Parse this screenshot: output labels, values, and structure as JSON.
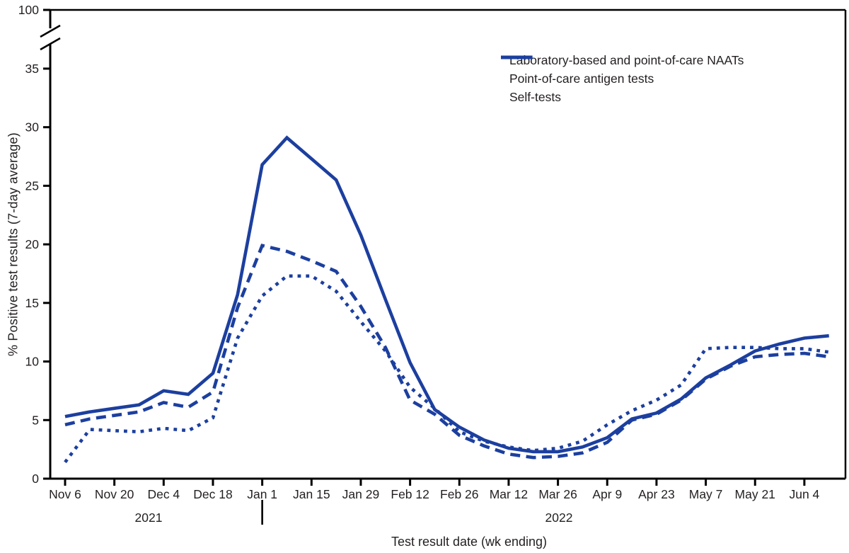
{
  "figure": {
    "ylabel": "% Positive test results (7-day average)",
    "xlabel": "Test result date (wk ending)",
    "year_left": "2021",
    "year_right": "2022"
  },
  "legend": {
    "items": [
      {
        "label": "Laboratory-based and point-of-care NAATs",
        "style": "solid"
      },
      {
        "label": "Point-of-care antigen tests",
        "style": "dashed"
      },
      {
        "label": "Self-tests",
        "style": "dotted"
      }
    ]
  },
  "colors": {
    "line_blue": "#1c3f9f",
    "text": "#231f20",
    "axis": "#000000",
    "background": "#ffffff"
  },
  "chart_data": {
    "type": "line",
    "title": "",
    "xlabel": "Test result date (wk ending)",
    "ylabel": "% Positive test results (7-day average)",
    "legend_position": "top-right",
    "grid": false,
    "ylim": [
      0,
      100
    ],
    "y_axis_break_between": [
      35,
      100
    ],
    "y_ticks": [
      0,
      5,
      10,
      15,
      20,
      25,
      30,
      35,
      100
    ],
    "x_tick_labels": [
      "Nov 6",
      "Nov 20",
      "Dec 4",
      "Dec 18",
      "Jan 1",
      "Jan 15",
      "Jan 29",
      "Feb 12",
      "Feb 26",
      "Mar 12",
      "Mar 26",
      "Apr 9",
      "Apr 23",
      "May 7",
      "May 21",
      "Jun 4"
    ],
    "year_divider_after_category": "Dec 25",
    "categories": [
      "Nov 6",
      "Nov 13",
      "Nov 20",
      "Nov 27",
      "Dec 4",
      "Dec 11",
      "Dec 18",
      "Dec 25",
      "Jan 1",
      "Jan 8",
      "Jan 15",
      "Jan 22",
      "Jan 29",
      "Feb 5",
      "Feb 12",
      "Feb 19",
      "Feb 26",
      "Mar 5",
      "Mar 12",
      "Mar 19",
      "Mar 26",
      "Apr 2",
      "Apr 9",
      "Apr 16",
      "Apr 23",
      "Apr 30",
      "May 7",
      "May 14",
      "May 21",
      "May 28",
      "Jun 4",
      "Jun 11"
    ],
    "series": [
      {
        "name": "Laboratory-based and point-of-care NAATs",
        "style": "solid",
        "values": [
          5.3,
          5.7,
          6.0,
          6.3,
          7.5,
          7.2,
          9.0,
          15.7,
          26.8,
          29.1,
          27.3,
          25.5,
          20.8,
          15.3,
          9.9,
          5.9,
          4.4,
          3.3,
          2.6,
          2.3,
          2.3,
          2.7,
          3.5,
          5.1,
          5.6,
          6.8,
          8.6,
          9.7,
          10.9,
          11.5,
          12.0,
          12.2
        ]
      },
      {
        "name": "Point-of-care antigen tests",
        "style": "dashed",
        "values": [
          4.6,
          5.1,
          5.4,
          5.7,
          6.5,
          6.1,
          7.4,
          14.6,
          19.9,
          19.4,
          18.6,
          17.7,
          14.7,
          11.2,
          6.7,
          5.5,
          3.7,
          2.8,
          2.1,
          1.8,
          1.9,
          2.2,
          3.1,
          5.0,
          5.5,
          6.7,
          8.5,
          9.6,
          10.4,
          10.6,
          10.7,
          10.4
        ]
      },
      {
        "name": "Self-tests",
        "style": "dotted",
        "values": [
          1.4,
          4.2,
          4.1,
          4.0,
          4.3,
          4.1,
          5.2,
          12.0,
          15.6,
          17.3,
          17.3,
          16.0,
          13.4,
          10.9,
          7.8,
          6.0,
          4.0,
          3.2,
          2.7,
          2.4,
          2.6,
          3.2,
          4.6,
          5.8,
          6.7,
          8.0,
          11.1,
          11.2,
          11.2,
          11.1,
          11.1,
          10.8
        ]
      }
    ]
  }
}
